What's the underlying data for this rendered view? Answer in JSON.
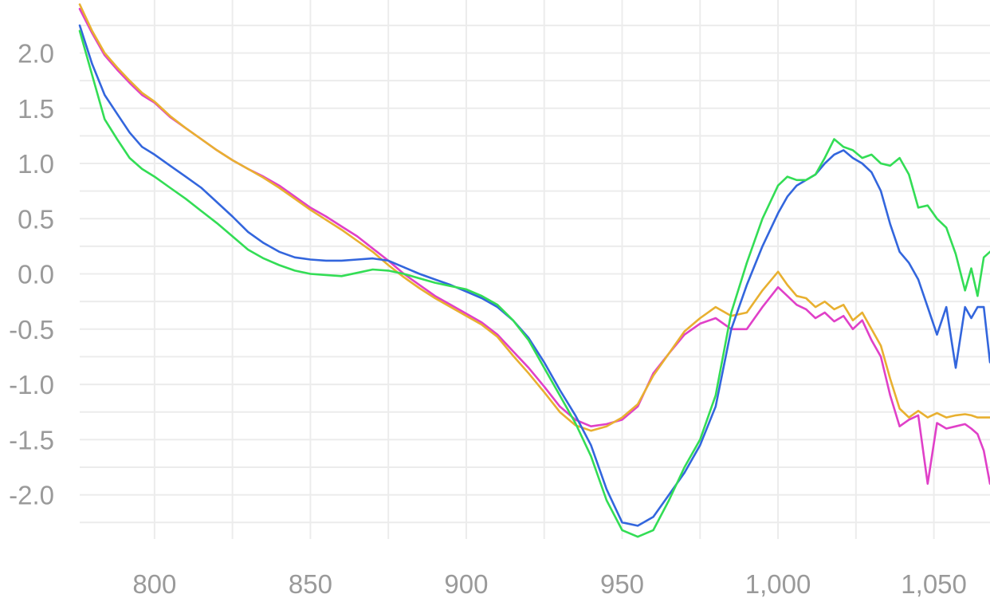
{
  "chart_data": {
    "type": "line",
    "title": "",
    "xlabel": "",
    "ylabel": "",
    "xlim": [
      776,
      1068
    ],
    "ylim": [
      -2.4,
      2.48
    ],
    "xticks": [
      800,
      850,
      900,
      950,
      1000,
      1050
    ],
    "xtick_labels": [
      "800",
      "850",
      "900",
      "950",
      "1,000",
      "1,050"
    ],
    "yticks": [
      2.0,
      1.5,
      1.0,
      0.5,
      0.0,
      -0.5,
      -1.0,
      -1.5,
      -2.0
    ],
    "ytick_labels": [
      "2.0",
      "1.5",
      "1.0",
      "0.5",
      "0.0",
      "-0.5",
      "-1.0",
      "-1.5",
      "-2.0"
    ],
    "grid": true,
    "legend": "none",
    "series": [
      {
        "color": "#e040c8",
        "x": [
          776,
          780,
          784,
          788,
          792,
          796,
          800,
          805,
          810,
          815,
          820,
          825,
          830,
          835,
          840,
          845,
          850,
          855,
          860,
          865,
          870,
          875,
          880,
          885,
          890,
          895,
          900,
          905,
          910,
          915,
          920,
          925,
          930,
          935,
          940,
          945,
          950,
          955,
          960,
          965,
          970,
          975,
          980,
          985,
          990,
          995,
          1000,
          1003,
          1006,
          1009,
          1012,
          1015,
          1018,
          1021,
          1024,
          1027,
          1030,
          1033,
          1036,
          1039,
          1042,
          1045,
          1048,
          1051,
          1054,
          1057,
          1060,
          1062,
          1064,
          1066,
          1068
        ],
        "y": [
          2.4,
          2.18,
          1.98,
          1.85,
          1.73,
          1.62,
          1.55,
          1.42,
          1.32,
          1.22,
          1.12,
          1.03,
          0.95,
          0.88,
          0.8,
          0.7,
          0.6,
          0.52,
          0.43,
          0.34,
          0.23,
          0.12,
          0.0,
          -0.1,
          -0.2,
          -0.28,
          -0.36,
          -0.44,
          -0.55,
          -0.7,
          -0.85,
          -1.02,
          -1.2,
          -1.32,
          -1.38,
          -1.36,
          -1.32,
          -1.2,
          -0.9,
          -0.72,
          -0.55,
          -0.45,
          -0.4,
          -0.5,
          -0.5,
          -0.3,
          -0.12,
          -0.2,
          -0.28,
          -0.32,
          -0.4,
          -0.35,
          -0.43,
          -0.38,
          -0.5,
          -0.42,
          -0.6,
          -0.75,
          -1.1,
          -1.38,
          -1.32,
          -1.28,
          -1.9,
          -1.35,
          -1.4,
          -1.38,
          -1.36,
          -1.4,
          -1.45,
          -1.6,
          -1.9
        ]
      },
      {
        "color": "#e8b030",
        "x": [
          776,
          780,
          784,
          788,
          792,
          796,
          800,
          805,
          810,
          815,
          820,
          825,
          830,
          835,
          840,
          845,
          850,
          855,
          860,
          865,
          870,
          875,
          880,
          885,
          890,
          895,
          900,
          905,
          910,
          915,
          920,
          925,
          930,
          935,
          940,
          945,
          950,
          955,
          960,
          965,
          970,
          975,
          980,
          985,
          990,
          995,
          1000,
          1003,
          1006,
          1009,
          1012,
          1015,
          1018,
          1021,
          1024,
          1027,
          1030,
          1033,
          1036,
          1039,
          1042,
          1045,
          1048,
          1051,
          1054,
          1057,
          1060,
          1062,
          1064,
          1066,
          1068
        ],
        "y": [
          2.44,
          2.2,
          2.0,
          1.87,
          1.75,
          1.64,
          1.56,
          1.43,
          1.32,
          1.22,
          1.12,
          1.03,
          0.95,
          0.87,
          0.78,
          0.68,
          0.58,
          0.49,
          0.4,
          0.3,
          0.2,
          0.08,
          -0.03,
          -0.13,
          -0.22,
          -0.3,
          -0.38,
          -0.46,
          -0.57,
          -0.74,
          -0.9,
          -1.07,
          -1.25,
          -1.37,
          -1.42,
          -1.38,
          -1.3,
          -1.18,
          -0.92,
          -0.72,
          -0.52,
          -0.4,
          -0.3,
          -0.38,
          -0.35,
          -0.15,
          0.02,
          -0.1,
          -0.2,
          -0.22,
          -0.3,
          -0.25,
          -0.32,
          -0.28,
          -0.42,
          -0.35,
          -0.5,
          -0.65,
          -0.95,
          -1.22,
          -1.3,
          -1.24,
          -1.3,
          -1.26,
          -1.3,
          -1.28,
          -1.27,
          -1.28,
          -1.3,
          -1.3,
          -1.3
        ]
      },
      {
        "color": "#3366dd",
        "x": [
          776,
          780,
          784,
          788,
          792,
          796,
          800,
          805,
          810,
          815,
          820,
          825,
          830,
          835,
          840,
          845,
          850,
          855,
          860,
          865,
          870,
          875,
          880,
          885,
          890,
          895,
          900,
          905,
          910,
          915,
          920,
          925,
          930,
          935,
          940,
          945,
          950,
          955,
          960,
          965,
          970,
          975,
          980,
          985,
          990,
          995,
          1000,
          1003,
          1006,
          1009,
          1012,
          1015,
          1018,
          1021,
          1024,
          1027,
          1030,
          1033,
          1036,
          1039,
          1042,
          1045,
          1048,
          1051,
          1054,
          1057,
          1060,
          1062,
          1064,
          1066,
          1068
        ],
        "y": [
          2.25,
          1.9,
          1.62,
          1.45,
          1.28,
          1.15,
          1.08,
          0.98,
          0.88,
          0.78,
          0.65,
          0.52,
          0.38,
          0.28,
          0.2,
          0.15,
          0.13,
          0.12,
          0.12,
          0.13,
          0.14,
          0.12,
          0.06,
          0.0,
          -0.05,
          -0.1,
          -0.16,
          -0.22,
          -0.3,
          -0.42,
          -0.58,
          -0.8,
          -1.05,
          -1.28,
          -1.55,
          -1.95,
          -2.25,
          -2.28,
          -2.2,
          -2.0,
          -1.8,
          -1.55,
          -1.2,
          -0.5,
          -0.1,
          0.25,
          0.55,
          0.7,
          0.8,
          0.85,
          0.9,
          1.0,
          1.08,
          1.12,
          1.05,
          1.0,
          0.92,
          0.75,
          0.45,
          0.2,
          0.1,
          -0.05,
          -0.3,
          -0.55,
          -0.3,
          -0.85,
          -0.3,
          -0.4,
          -0.3,
          -0.3,
          -0.8
        ]
      },
      {
        "color": "#33dd55",
        "x": [
          776,
          780,
          784,
          788,
          792,
          796,
          800,
          805,
          810,
          815,
          820,
          825,
          830,
          835,
          840,
          845,
          850,
          855,
          860,
          865,
          870,
          875,
          880,
          885,
          890,
          895,
          900,
          905,
          910,
          915,
          920,
          925,
          930,
          935,
          940,
          945,
          950,
          955,
          960,
          965,
          970,
          975,
          980,
          985,
          990,
          995,
          1000,
          1003,
          1006,
          1009,
          1012,
          1015,
          1018,
          1021,
          1024,
          1027,
          1030,
          1033,
          1036,
          1039,
          1042,
          1045,
          1048,
          1051,
          1054,
          1057,
          1060,
          1062,
          1064,
          1066,
          1068
        ],
        "y": [
          2.2,
          1.8,
          1.4,
          1.22,
          1.05,
          0.95,
          0.88,
          0.78,
          0.68,
          0.57,
          0.46,
          0.34,
          0.22,
          0.14,
          0.08,
          0.03,
          0.0,
          -0.01,
          -0.02,
          0.01,
          0.04,
          0.03,
          0.0,
          -0.04,
          -0.08,
          -0.11,
          -0.14,
          -0.2,
          -0.28,
          -0.42,
          -0.6,
          -0.85,
          -1.1,
          -1.35,
          -1.65,
          -2.05,
          -2.32,
          -2.38,
          -2.32,
          -2.05,
          -1.75,
          -1.5,
          -1.1,
          -0.35,
          0.1,
          0.5,
          0.8,
          0.88,
          0.85,
          0.85,
          0.9,
          1.05,
          1.22,
          1.15,
          1.12,
          1.05,
          1.08,
          1.0,
          0.98,
          1.05,
          0.9,
          0.6,
          0.62,
          0.5,
          0.42,
          0.18,
          -0.15,
          0.05,
          -0.2,
          0.15,
          0.2
        ]
      }
    ]
  }
}
